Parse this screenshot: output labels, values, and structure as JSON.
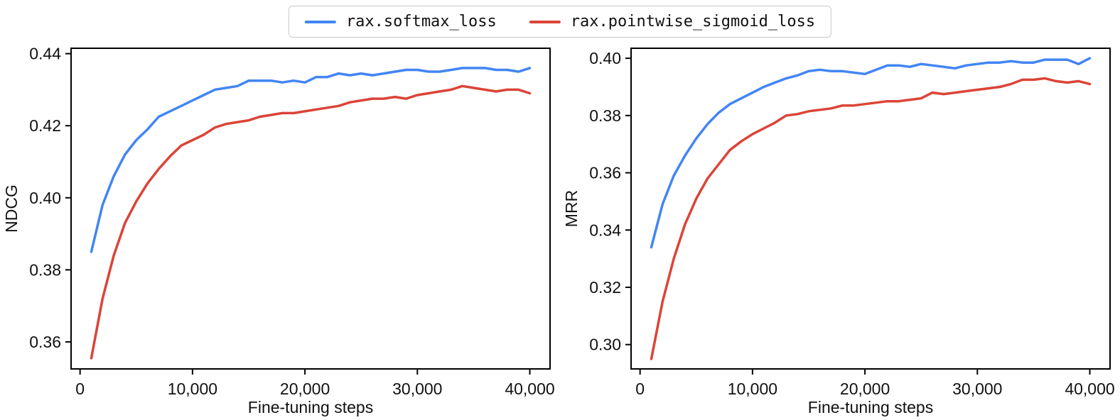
{
  "legend": {
    "items": [
      {
        "label": "rax.softmax_loss",
        "color": "#4285F4"
      },
      {
        "label": "rax.pointwise_sigmoid_loss",
        "color": "#DB4437"
      }
    ]
  },
  "colors": {
    "axis": "#000000",
    "tick_text": "#111111",
    "blue": "#4285F4",
    "red": "#DB4437"
  },
  "chart_data": [
    {
      "type": "line",
      "title": "",
      "xlabel": "Fine-tuning steps",
      "ylabel": "NDCG",
      "xlim": [
        -800,
        41800
      ],
      "ylim": [
        0.3525,
        0.4415
      ],
      "grid": false,
      "legend_position": "top-center-shared",
      "xtick_values": [
        0,
        10000,
        20000,
        30000,
        40000
      ],
      "xtick_labels": [
        "0",
        "10,000",
        "20,000",
        "30,000",
        "40,000"
      ],
      "ytick_values": [
        0.36,
        0.38,
        0.4,
        0.42,
        0.44
      ],
      "ytick_labels": [
        "0.36",
        "0.38",
        "0.40",
        "0.42",
        "0.44"
      ],
      "x": [
        1000,
        2000,
        3000,
        4000,
        5000,
        6000,
        7000,
        8000,
        9000,
        10000,
        11000,
        12000,
        13000,
        14000,
        15000,
        16000,
        17000,
        18000,
        19000,
        20000,
        21000,
        22000,
        23000,
        24000,
        25000,
        26000,
        27000,
        28000,
        29000,
        30000,
        31000,
        32000,
        33000,
        34000,
        35000,
        36000,
        37000,
        38000,
        39000,
        40000
      ],
      "series": [
        {
          "name": "rax.softmax_loss",
          "color": "#4285F4",
          "values": [
            0.385,
            0.398,
            0.406,
            0.412,
            0.416,
            0.419,
            0.4225,
            0.424,
            0.4255,
            0.427,
            0.4285,
            0.43,
            0.4305,
            0.431,
            0.4325,
            0.4325,
            0.4325,
            0.432,
            0.4325,
            0.432,
            0.4335,
            0.4335,
            0.4345,
            0.434,
            0.4345,
            0.434,
            0.4345,
            0.435,
            0.4355,
            0.4355,
            0.435,
            0.435,
            0.4355,
            0.436,
            0.436,
            0.436,
            0.4355,
            0.4355,
            0.435,
            0.436
          ]
        },
        {
          "name": "rax.pointwise_sigmoid_loss",
          "color": "#DB4437",
          "values": [
            0.3555,
            0.372,
            0.384,
            0.393,
            0.399,
            0.404,
            0.408,
            0.4115,
            0.4145,
            0.416,
            0.4175,
            0.4195,
            0.4205,
            0.421,
            0.4215,
            0.4225,
            0.423,
            0.4235,
            0.4235,
            0.424,
            0.4245,
            0.425,
            0.4255,
            0.4265,
            0.427,
            0.4275,
            0.4275,
            0.428,
            0.4275,
            0.4285,
            0.429,
            0.4295,
            0.43,
            0.431,
            0.4305,
            0.43,
            0.4295,
            0.43,
            0.43,
            0.429
          ]
        }
      ]
    },
    {
      "type": "line",
      "title": "",
      "xlabel": "Fine-tuning steps",
      "ylabel": "MRR",
      "xlim": [
        -800,
        41800
      ],
      "ylim": [
        0.2915,
        0.4035
      ],
      "grid": false,
      "legend_position": "top-center-shared",
      "xtick_values": [
        0,
        10000,
        20000,
        30000,
        40000
      ],
      "xtick_labels": [
        "0",
        "10,000",
        "20,000",
        "30,000",
        "40,000"
      ],
      "ytick_values": [
        0.3,
        0.32,
        0.34,
        0.36,
        0.38,
        0.4
      ],
      "ytick_labels": [
        "0.30",
        "0.32",
        "0.34",
        "0.36",
        "0.38",
        "0.40"
      ],
      "x": [
        1000,
        2000,
        3000,
        4000,
        5000,
        6000,
        7000,
        8000,
        9000,
        10000,
        11000,
        12000,
        13000,
        14000,
        15000,
        16000,
        17000,
        18000,
        19000,
        20000,
        21000,
        22000,
        23000,
        24000,
        25000,
        26000,
        27000,
        28000,
        29000,
        30000,
        31000,
        32000,
        33000,
        34000,
        35000,
        36000,
        37000,
        38000,
        39000,
        40000
      ],
      "series": [
        {
          "name": "rax.softmax_loss",
          "color": "#4285F4",
          "values": [
            0.334,
            0.349,
            0.359,
            0.366,
            0.372,
            0.377,
            0.381,
            0.384,
            0.386,
            0.388,
            0.39,
            0.3915,
            0.393,
            0.394,
            0.3955,
            0.396,
            0.3955,
            0.3955,
            0.395,
            0.3945,
            0.396,
            0.3975,
            0.3975,
            0.397,
            0.398,
            0.3975,
            0.397,
            0.3965,
            0.3975,
            0.398,
            0.3985,
            0.3985,
            0.399,
            0.3985,
            0.3985,
            0.3995,
            0.3995,
            0.3995,
            0.398,
            0.4
          ]
        },
        {
          "name": "rax.pointwise_sigmoid_loss",
          "color": "#DB4437",
          "values": [
            0.295,
            0.315,
            0.33,
            0.342,
            0.351,
            0.358,
            0.363,
            0.368,
            0.371,
            0.3735,
            0.3755,
            0.3775,
            0.38,
            0.3805,
            0.3815,
            0.382,
            0.3825,
            0.3835,
            0.3835,
            0.384,
            0.3845,
            0.385,
            0.385,
            0.3855,
            0.386,
            0.388,
            0.3875,
            0.388,
            0.3885,
            0.389,
            0.3895,
            0.39,
            0.391,
            0.3925,
            0.3925,
            0.393,
            0.392,
            0.3915,
            0.392,
            0.391
          ]
        }
      ]
    }
  ]
}
